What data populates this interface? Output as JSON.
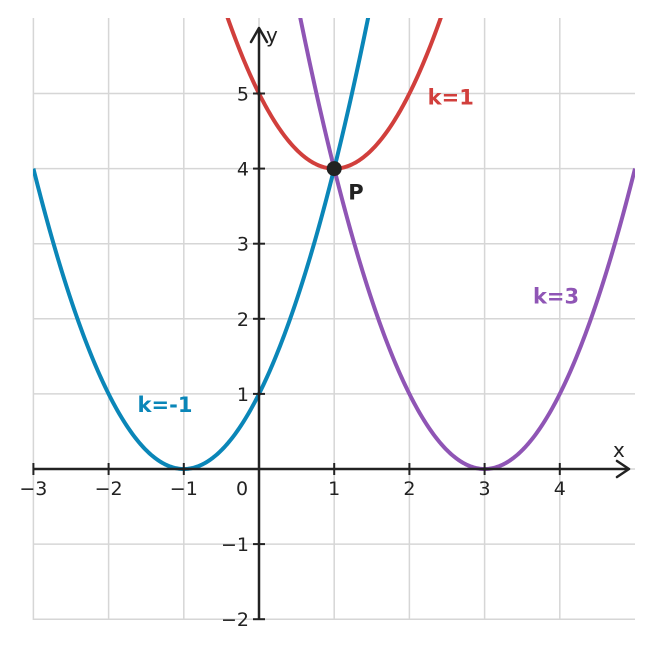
{
  "chart_data": {
    "type": "line",
    "title": "",
    "xlabel": "x",
    "ylabel": "y",
    "xlim": [
      -3,
      5
    ],
    "ylim": [
      -2,
      6
    ],
    "grid": true,
    "x_ticks": [
      -3,
      -2,
      -1,
      1,
      2,
      3,
      4
    ],
    "x_tick_labels": [
      "−3",
      "−2",
      "−1",
      "1",
      "2",
      "3",
      "4"
    ],
    "y_ticks": [
      -2,
      -1,
      1,
      2,
      3,
      4,
      5
    ],
    "y_tick_labels": [
      "−2",
      "−1",
      "1",
      "2",
      "3",
      "4",
      "5"
    ],
    "origin_label": "0",
    "series": [
      {
        "name": "k=-1",
        "formula": "y = (x + 1)^2",
        "vertex": [
          -1,
          0
        ],
        "color": "#0a86b8",
        "label_at": [
          -1.25,
          0.85
        ]
      },
      {
        "name": "k=1",
        "formula": "y = (x - 1)^2 + 4",
        "vertex": [
          1,
          4
        ],
        "color": "#d13f3c",
        "label_at": [
          2.55,
          4.95
        ]
      },
      {
        "name": "k=3",
        "formula": "y = (x - 3)^2",
        "vertex": [
          3,
          0
        ],
        "color": "#8f55b5",
        "label_at": [
          3.95,
          2.3
        ]
      }
    ],
    "point": {
      "label": "P",
      "x": 1,
      "y": 4,
      "color": "#222222"
    }
  }
}
